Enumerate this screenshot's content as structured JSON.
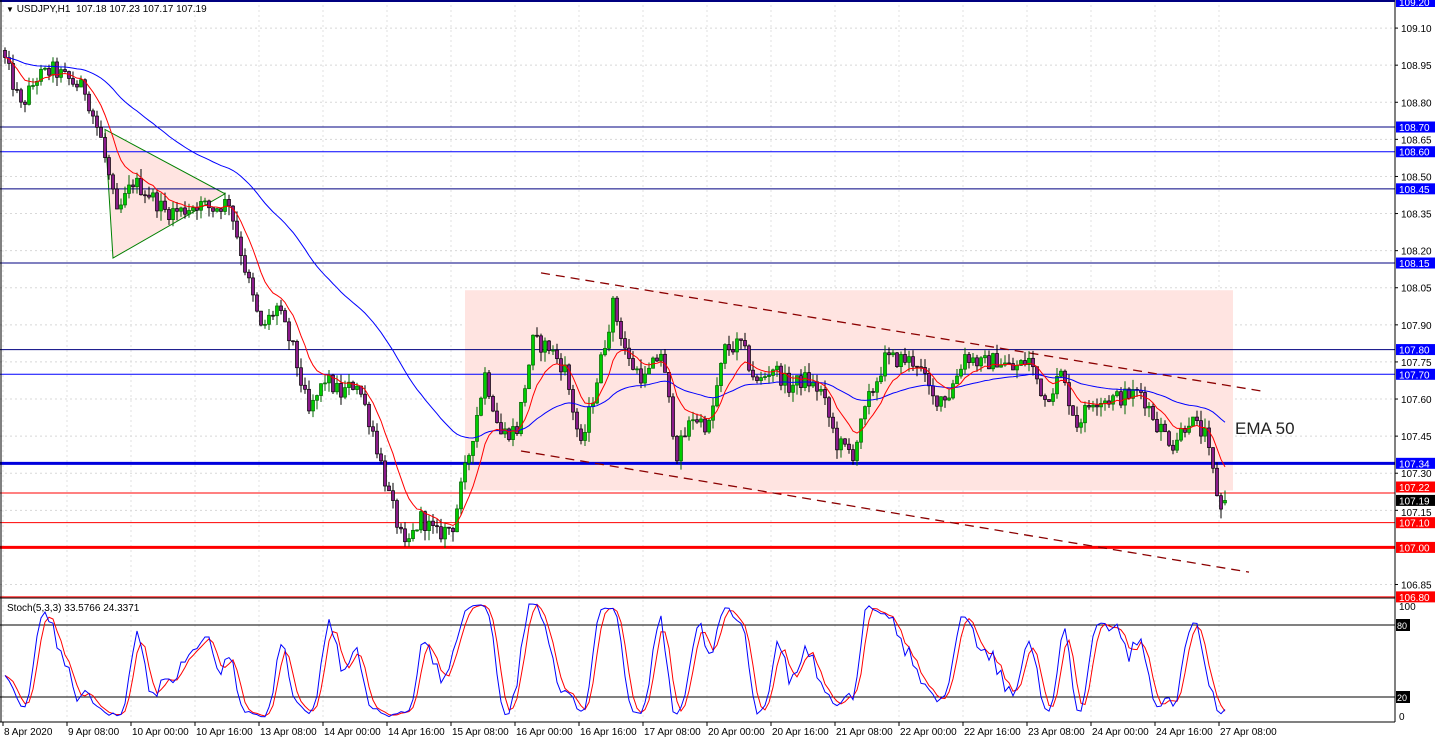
{
  "header": {
    "symbol": "USDJPY,H1",
    "ohlc": "107.18 107.23 107.17 107.19",
    "menu_icon": "triangle-down-icon"
  },
  "stoch_header": {
    "label": "Stoch(5,3,3)",
    "k": "33.5766",
    "d": "24.3371"
  },
  "ema_label": "EMA 50",
  "chart_data": {
    "type": "candlestick",
    "symbol": "USDJPY",
    "timeframe": "H1",
    "ylim": [
      106.79,
      109.2
    ],
    "price_ticks": [
      "109.10",
      "108.95",
      "108.80",
      "108.65",
      "108.50",
      "108.35",
      "108.20",
      "108.05",
      "107.90",
      "107.75",
      "107.60",
      "107.45",
      "107.30",
      "107.15",
      "106.85"
    ],
    "top_label": "109.20",
    "time_labels": [
      "8 Apr 2020",
      "9 Apr 08:00",
      "10 Apr 00:00",
      "10 Apr 16:00",
      "13 Apr 08:00",
      "14 Apr 00:00",
      "14 Apr 16:00",
      "15 Apr 08:00",
      "16 Apr 00:00",
      "16 Apr 16:00",
      "17 Apr 08:00",
      "20 Apr 00:00",
      "20 Apr 16:00",
      "21 Apr 08:00",
      "22 Apr 00:00",
      "22 Apr 16:00",
      "23 Apr 08:00",
      "24 Apr 00:00",
      "24 Apr 16:00",
      "27 Apr 08:00"
    ],
    "trading_days": [
      "8 Apr",
      "9 Apr",
      "10 Apr",
      "13 Apr",
      "14 Apr",
      "15 Apr",
      "16 Apr",
      "17 Apr",
      "20 Apr",
      "21 Apr",
      "22 Apr",
      "23 Apr",
      "24 Apr",
      "27 Apr"
    ],
    "first_bar": "8 Apr 16:00",
    "close_path_every_4h": [
      108.97,
      108.78,
      108.9,
      108.93,
      108.89,
      108.85,
      108.65,
      108.34,
      108.48,
      108.43,
      108.36,
      108.36,
      108.39,
      108.37,
      108.4,
      108.13,
      107.88,
      107.97,
      107.8,
      107.54,
      107.68,
      107.62,
      107.67,
      107.47,
      107.21,
      106.99,
      107.12,
      107.05,
      107.09,
      107.38,
      107.7,
      107.46,
      107.48,
      107.83,
      107.81,
      107.72,
      107.4,
      107.68,
      107.98,
      107.75,
      107.68,
      107.79,
      107.38,
      107.53,
      107.49,
      107.8,
      107.82,
      107.66,
      107.73,
      107.65,
      107.68,
      107.63,
      107.42,
      107.38,
      107.6,
      107.76,
      107.76,
      107.75,
      107.6,
      107.62,
      107.78,
      107.74,
      107.76,
      107.72,
      107.76,
      107.6,
      107.7,
      107.5,
      107.6,
      107.6,
      107.61,
      107.63,
      107.5,
      107.42,
      107.52,
      107.45,
      107.15
    ],
    "last_bar": {
      "open": 107.18,
      "high": 107.23,
      "low": 107.17,
      "close": 107.19
    },
    "current_price": "107.19",
    "levels": [
      {
        "price": "108.70",
        "color": "#000080",
        "label_bg": "#0000ff",
        "thick": false
      },
      {
        "price": "108.60",
        "color": "#0000ff",
        "label_bg": "#0000ff",
        "thick": false
      },
      {
        "price": "108.45",
        "color": "#000080",
        "label_bg": "#0000ff",
        "thick": false
      },
      {
        "price": "108.15",
        "color": "#000080",
        "label_bg": "#0000ff",
        "thick": false
      },
      {
        "price": "107.80",
        "color": "#000080",
        "label_bg": "#0000ff",
        "thick": false
      },
      {
        "price": "107.70",
        "color": "#0000ff",
        "label_bg": "#0000ff",
        "thick": false
      },
      {
        "price": "107.34",
        "color": "#0000dd",
        "label_bg": "#0000ff",
        "thick": true
      },
      {
        "price": "107.22",
        "color": "#ff0000",
        "label_bg": "#ff0000",
        "thick": false
      },
      {
        "price": "107.10",
        "color": "#ff0000",
        "label_bg": "#ff0000",
        "thick": false
      },
      {
        "price": "107.00",
        "color": "#ff0000",
        "label_bg": "#ff0000",
        "thick": true
      },
      {
        "price": "106.80",
        "color": "#ff0000",
        "label_bg": "#ff0000",
        "thick": false
      }
    ],
    "range_box": {
      "from": "15 Apr 11:00",
      "to": "27 Apr 11:00",
      "high": 108.04,
      "low": 107.23,
      "color": "#ffe4e1"
    },
    "triangle": {
      "points": [
        [
          "9 Apr 17:00",
          108.69
        ],
        [
          "9 Apr 19:00",
          108.17
        ],
        [
          "10 Apr 23:00",
          108.43
        ]
      ],
      "fill": "#ffe4e1",
      "stroke": "#008000"
    },
    "channel": [
      {
        "from": [
          "16 Apr 06:00",
          108.11
        ],
        "to": [
          "27 Apr 19:00",
          107.63
        ]
      },
      {
        "from": [
          "16 Apr 01:00",
          107.39
        ],
        "to": [
          "27 Apr 15:00",
          106.9
        ]
      }
    ],
    "channel_color": "#8b0000",
    "ema_fast": {
      "period": 10,
      "color": "#ff0000"
    },
    "ema_slow": {
      "period": 50,
      "color": "#0000ff"
    },
    "stochastic": {
      "k": 5,
      "d": 3,
      "slowing": 3,
      "levels": [
        "80",
        "20"
      ],
      "scale": [
        "100",
        "0"
      ],
      "k_color": "#0000ff",
      "d_color": "#ff0000"
    },
    "bull_color": "#00cc00",
    "bear_color": "#8b1a8b"
  }
}
